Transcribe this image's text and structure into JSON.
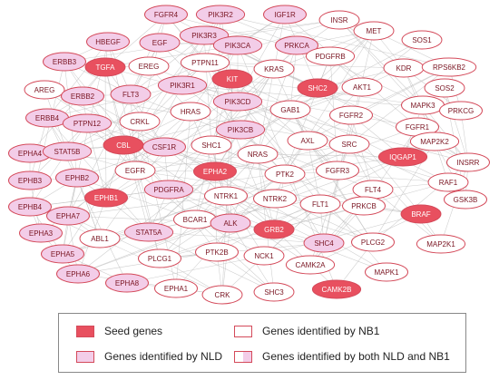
{
  "colors": {
    "seed_fill": "#e8505f",
    "nld_fill": "#f3cde8",
    "nb1_fill": "#ffffff",
    "node_border": "#d44a5a",
    "edge": "#bdbdbd",
    "label_text": "#7a1522"
  },
  "legend": {
    "seed": "Seed genes",
    "nld": "Genes identified by NLD",
    "nb1": "Genes identified by NB1",
    "both": "Genes identified by both NLD and NB1"
  },
  "nodes": [
    {
      "label": "FGFR4",
      "cat": "nld"
    },
    {
      "label": "PIK3R2",
      "cat": "nld"
    },
    {
      "label": "IGF1R",
      "cat": "nld"
    },
    {
      "label": "INSR",
      "cat": "nb1"
    },
    {
      "label": "HBEGF",
      "cat": "nld"
    },
    {
      "label": "EGF",
      "cat": "nld"
    },
    {
      "label": "PIK3R3",
      "cat": "nld"
    },
    {
      "label": "PIK3CA",
      "cat": "nld"
    },
    {
      "label": "PRKCA",
      "cat": "nld"
    },
    {
      "label": "MET",
      "cat": "nb1"
    },
    {
      "label": "SOS1",
      "cat": "nb1"
    },
    {
      "label": "ERBB3",
      "cat": "nld"
    },
    {
      "label": "TGFA",
      "cat": "seed"
    },
    {
      "label": "EREG",
      "cat": "nb1"
    },
    {
      "label": "PTPN11",
      "cat": "nb1"
    },
    {
      "label": "KIT",
      "cat": "seed"
    },
    {
      "label": "KRAS",
      "cat": "nb1"
    },
    {
      "label": "PDGFRB",
      "cat": "nb1"
    },
    {
      "label": "KDR",
      "cat": "nb1"
    },
    {
      "label": "RPS6KB2",
      "cat": "nb1"
    },
    {
      "label": "AREG",
      "cat": "nb1"
    },
    {
      "label": "ERBB2",
      "cat": "nld"
    },
    {
      "label": "FLT3",
      "cat": "nld"
    },
    {
      "label": "PIK3R1",
      "cat": "nld"
    },
    {
      "label": "PIK3CD",
      "cat": "nld"
    },
    {
      "label": "SHC2",
      "cat": "seed"
    },
    {
      "label": "AKT1",
      "cat": "nb1"
    },
    {
      "label": "SOS2",
      "cat": "nb1"
    },
    {
      "label": "ERBB4",
      "cat": "nld"
    },
    {
      "label": "PTPN12",
      "cat": "nld"
    },
    {
      "label": "CRKL",
      "cat": "nb1"
    },
    {
      "label": "HRAS",
      "cat": "nb1"
    },
    {
      "label": "GAB1",
      "cat": "nb1"
    },
    {
      "label": "FGFR2",
      "cat": "nb1"
    },
    {
      "label": "MAPK3",
      "cat": "nb1"
    },
    {
      "label": "PRKCG",
      "cat": "nb1"
    },
    {
      "label": "PIK3CB",
      "cat": "nld"
    },
    {
      "label": "FGFR1",
      "cat": "nb1"
    },
    {
      "label": "EPHA4",
      "cat": "nld"
    },
    {
      "label": "STAT5B",
      "cat": "nld"
    },
    {
      "label": "CBL",
      "cat": "seed"
    },
    {
      "label": "CSF1R",
      "cat": "nld"
    },
    {
      "label": "SHC1",
      "cat": "nb1"
    },
    {
      "label": "NRAS",
      "cat": "nb1"
    },
    {
      "label": "AXL",
      "cat": "nb1"
    },
    {
      "label": "SRC",
      "cat": "nb1"
    },
    {
      "label": "MAP2K2",
      "cat": "nb1"
    },
    {
      "label": "EPHB3",
      "cat": "nld"
    },
    {
      "label": "EPHB2",
      "cat": "nld"
    },
    {
      "label": "EGFR",
      "cat": "nb1"
    },
    {
      "label": "EPHA2",
      "cat": "seed"
    },
    {
      "label": "IQGAP1",
      "cat": "seed"
    },
    {
      "label": "INSRR",
      "cat": "nb1"
    },
    {
      "label": "PTK2",
      "cat": "nb1"
    },
    {
      "label": "FGFR3",
      "cat": "nb1"
    },
    {
      "label": "EPHB4",
      "cat": "nld"
    },
    {
      "label": "EPHB1",
      "cat": "seed"
    },
    {
      "label": "PDGFRA",
      "cat": "nld"
    },
    {
      "label": "NTRK1",
      "cat": "nb1"
    },
    {
      "label": "NTRK2",
      "cat": "nb1"
    },
    {
      "label": "RAF1",
      "cat": "nb1"
    },
    {
      "label": "GSK3B",
      "cat": "nb1"
    },
    {
      "label": "EPHA7",
      "cat": "nld"
    },
    {
      "label": "BCAR1",
      "cat": "nb1"
    },
    {
      "label": "FLT1",
      "cat": "nb1"
    },
    {
      "label": "FLT4",
      "cat": "nb1"
    },
    {
      "label": "PRKCB",
      "cat": "nb1"
    },
    {
      "label": "EPHA3",
      "cat": "nld"
    },
    {
      "label": "ABL1",
      "cat": "nb1"
    },
    {
      "label": "STAT5A",
      "cat": "nld"
    },
    {
      "label": "ALK",
      "cat": "nld"
    },
    {
      "label": "GRB2",
      "cat": "seed"
    },
    {
      "label": "BRAF",
      "cat": "seed"
    },
    {
      "label": "EPHA5",
      "cat": "nld"
    },
    {
      "label": "SHC4",
      "cat": "nld"
    },
    {
      "label": "PLCG2",
      "cat": "nb1"
    },
    {
      "label": "MAP2K1",
      "cat": "nb1"
    },
    {
      "label": "PLCG1",
      "cat": "nb1"
    },
    {
      "label": "PTK2B",
      "cat": "nb1"
    },
    {
      "label": "NCK1",
      "cat": "nb1"
    },
    {
      "label": "CAMK2A",
      "cat": "nb1"
    },
    {
      "label": "EPHA6",
      "cat": "nld"
    },
    {
      "label": "MAPK1",
      "cat": "nb1"
    },
    {
      "label": "EPHA8",
      "cat": "nld"
    },
    {
      "label": "EPHA1",
      "cat": "nb1"
    },
    {
      "label": "CRK",
      "cat": "nb1"
    },
    {
      "label": "SHC3",
      "cat": "nb1"
    },
    {
      "label": "CAMK2B",
      "cat": "seed"
    }
  ]
}
